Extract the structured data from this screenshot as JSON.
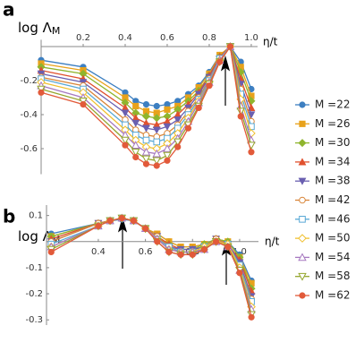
{
  "chart_data": [
    {
      "type": "line",
      "panel_label": "a",
      "ylabel": [
        "log Λ",
        "M"
      ],
      "xlabel": "η/t",
      "x": [
        0,
        0.2,
        0.4,
        0.45,
        0.5,
        0.55,
        0.6,
        0.65,
        0.7,
        0.75,
        0.8,
        0.85,
        0.9,
        0.95,
        1.0
      ],
      "xlim": [
        0,
        1.03
      ],
      "ylim": [
        -0.75,
        0.04
      ],
      "xticks": [
        0.2,
        0.4,
        0.6,
        0.8,
        {
          "value": 1,
          "label": "1.0"
        }
      ],
      "yticks": [
        -0.2,
        -0.4,
        -0.6
      ],
      "series": [
        {
          "name": "M =22",
          "color": "#3d7fc1",
          "marker": "circle",
          "values": [
            -0.08,
            -0.12,
            -0.27,
            -0.32,
            -0.34,
            -0.35,
            -0.34,
            -0.32,
            -0.28,
            -0.23,
            -0.15,
            -0.05,
            0,
            -0.09,
            -0.25
          ]
        },
        {
          "name": "M =26",
          "color": "#e8a21b",
          "marker": "square",
          "values": [
            -0.1,
            -0.14,
            -0.3,
            -0.35,
            -0.38,
            -0.39,
            -0.37,
            -0.35,
            -0.3,
            -0.24,
            -0.16,
            -0.05,
            0,
            -0.12,
            -0.29
          ]
        },
        {
          "name": "M =30",
          "color": "#8fb52e",
          "marker": "diamond",
          "values": [
            -0.12,
            -0.16,
            -0.33,
            -0.39,
            -0.41,
            -0.42,
            -0.41,
            -0.37,
            -0.32,
            -0.26,
            -0.17,
            -0.06,
            0,
            -0.15,
            -0.32
          ]
        },
        {
          "name": "M =34",
          "color": "#e0512e",
          "marker": "triangle-up",
          "values": [
            -0.14,
            -0.19,
            -0.36,
            -0.42,
            -0.45,
            -0.46,
            -0.44,
            -0.4,
            -0.34,
            -0.27,
            -0.17,
            -0.06,
            0,
            -0.19,
            -0.36
          ]
        },
        {
          "name": "M =38",
          "color": "#6a5fb0",
          "marker": "triangle-down",
          "values": [
            -0.16,
            -0.21,
            -0.39,
            -0.45,
            -0.48,
            -0.49,
            -0.47,
            -0.43,
            -0.36,
            -0.28,
            -0.18,
            -0.07,
            0,
            -0.22,
            -0.4
          ]
        },
        {
          "name": "M =42",
          "color": "#d9863a",
          "marker": "circle-open",
          "values": [
            -0.18,
            -0.23,
            -0.43,
            -0.49,
            -0.52,
            -0.53,
            -0.51,
            -0.46,
            -0.38,
            -0.3,
            -0.19,
            -0.07,
            0,
            -0.25,
            -0.44
          ]
        },
        {
          "name": "M =46",
          "color": "#5aa9d6",
          "marker": "square-open",
          "values": [
            -0.19,
            -0.25,
            -0.46,
            -0.52,
            -0.55,
            -0.56,
            -0.54,
            -0.48,
            -0.4,
            -0.31,
            -0.2,
            -0.07,
            0,
            -0.28,
            -0.47
          ]
        },
        {
          "name": "M =50",
          "color": "#f0c030",
          "marker": "diamond-open",
          "values": [
            -0.21,
            -0.27,
            -0.49,
            -0.55,
            -0.59,
            -0.6,
            -0.57,
            -0.51,
            -0.42,
            -0.32,
            -0.21,
            -0.08,
            0,
            -0.31,
            -0.51
          ]
        },
        {
          "name": "M =54",
          "color": "#a779c0",
          "marker": "triangle-up-open",
          "values": [
            -0.23,
            -0.3,
            -0.52,
            -0.58,
            -0.62,
            -0.63,
            -0.6,
            -0.54,
            -0.44,
            -0.33,
            -0.21,
            -0.08,
            0,
            -0.35,
            -0.55
          ]
        },
        {
          "name": "M =58",
          "color": "#94a62d",
          "marker": "triangle-down-open",
          "values": [
            -0.25,
            -0.32,
            -0.55,
            -0.62,
            -0.66,
            -0.67,
            -0.64,
            -0.56,
            -0.46,
            -0.35,
            -0.22,
            -0.09,
            0,
            -0.38,
            -0.58
          ]
        },
        {
          "name": "M =62",
          "color": "#e25a3a",
          "marker": "circle",
          "values": [
            -0.27,
            -0.34,
            -0.58,
            -0.65,
            -0.69,
            -0.7,
            -0.67,
            -0.59,
            -0.48,
            -0.36,
            -0.23,
            -0.09,
            0,
            -0.41,
            -0.62
          ]
        }
      ]
    },
    {
      "type": "line",
      "panel_label": "b",
      "ylabel": [
        "log Λ",
        "M"
      ],
      "xlabel": "η/t",
      "x": [
        0.2,
        0.4,
        0.45,
        0.5,
        0.55,
        0.6,
        0.65,
        0.7,
        0.75,
        0.8,
        0.85,
        0.9,
        0.95,
        1.0,
        1.05
      ],
      "xlim": [
        0.18,
        1.08
      ],
      "ylim": [
        -0.32,
        0.14
      ],
      "xticks": [
        0.4,
        0.6,
        0.8,
        {
          "value": 1,
          "label": "1.0"
        }
      ],
      "yticks": [
        0.1,
        -0.1,
        -0.2,
        -0.3
      ],
      "series": [
        {
          "color": "#3d7fc1",
          "marker": "circle",
          "values": [
            0.03,
            0.07,
            0.08,
            0.085,
            0.08,
            0.05,
            0.03,
            0.0,
            -0.02,
            -0.02,
            -0.01,
            0.01,
            0.0,
            -0.05,
            -0.15
          ]
        },
        {
          "color": "#e8a21b",
          "marker": "square",
          "values": [
            0.02,
            0.07,
            0.08,
            0.09,
            0.08,
            0.05,
            0.03,
            0.0,
            -0.02,
            -0.02,
            -0.01,
            0.01,
            0.0,
            -0.06,
            -0.16
          ]
        },
        {
          "color": "#8fb52e",
          "marker": "diamond",
          "values": [
            0.02,
            0.07,
            0.08,
            0.09,
            0.08,
            0.05,
            0.02,
            -0.01,
            -0.03,
            -0.03,
            -0.01,
            0.01,
            0.0,
            -0.06,
            -0.18
          ]
        },
        {
          "color": "#e0512e",
          "marker": "triangle-up",
          "values": [
            0.01,
            0.07,
            0.08,
            0.09,
            0.08,
            0.05,
            0.02,
            -0.01,
            -0.03,
            -0.03,
            -0.02,
            0.01,
            -0.01,
            -0.07,
            -0.19
          ]
        },
        {
          "color": "#6a5fb0",
          "marker": "triangle-down",
          "values": [
            0.0,
            0.07,
            0.08,
            0.09,
            0.08,
            0.05,
            0.02,
            -0.02,
            -0.03,
            -0.03,
            -0.02,
            0.01,
            -0.01,
            -0.08,
            -0.21
          ]
        },
        {
          "color": "#d9863a",
          "marker": "circle-open",
          "values": [
            0.0,
            0.07,
            0.08,
            0.09,
            0.08,
            0.05,
            0.02,
            -0.02,
            -0.04,
            -0.04,
            -0.02,
            0.01,
            -0.01,
            -0.09,
            -0.22
          ]
        },
        {
          "color": "#5aa9d6",
          "marker": "square-open",
          "values": [
            -0.01,
            0.06,
            0.08,
            0.09,
            0.08,
            0.05,
            0.01,
            -0.02,
            -0.04,
            -0.04,
            -0.02,
            0.0,
            -0.01,
            -0.09,
            -0.23
          ]
        },
        {
          "color": "#f0c030",
          "marker": "diamond-open",
          "values": [
            -0.02,
            0.06,
            0.08,
            0.09,
            0.08,
            0.05,
            0.01,
            -0.03,
            -0.04,
            -0.04,
            -0.02,
            0.0,
            -0.01,
            -0.1,
            -0.25
          ]
        },
        {
          "color": "#a779c0",
          "marker": "triangle-up-open",
          "values": [
            -0.02,
            0.06,
            0.08,
            0.09,
            0.08,
            0.05,
            0.01,
            -0.03,
            -0.04,
            -0.04,
            -0.03,
            0.0,
            -0.02,
            -0.11,
            -0.26
          ]
        },
        {
          "color": "#94a62d",
          "marker": "triangle-down-open",
          "values": [
            -0.03,
            0.06,
            0.08,
            0.09,
            0.08,
            0.05,
            0.0,
            -0.04,
            -0.05,
            -0.05,
            -0.03,
            0.0,
            -0.02,
            -0.11,
            -0.28
          ]
        },
        {
          "color": "#e25a3a",
          "marker": "circle",
          "values": [
            -0.04,
            0.06,
            0.08,
            0.09,
            0.08,
            0.05,
            0.0,
            -0.04,
            -0.05,
            -0.05,
            -0.03,
            0.0,
            -0.02,
            -0.12,
            -0.29
          ]
        }
      ]
    }
  ]
}
